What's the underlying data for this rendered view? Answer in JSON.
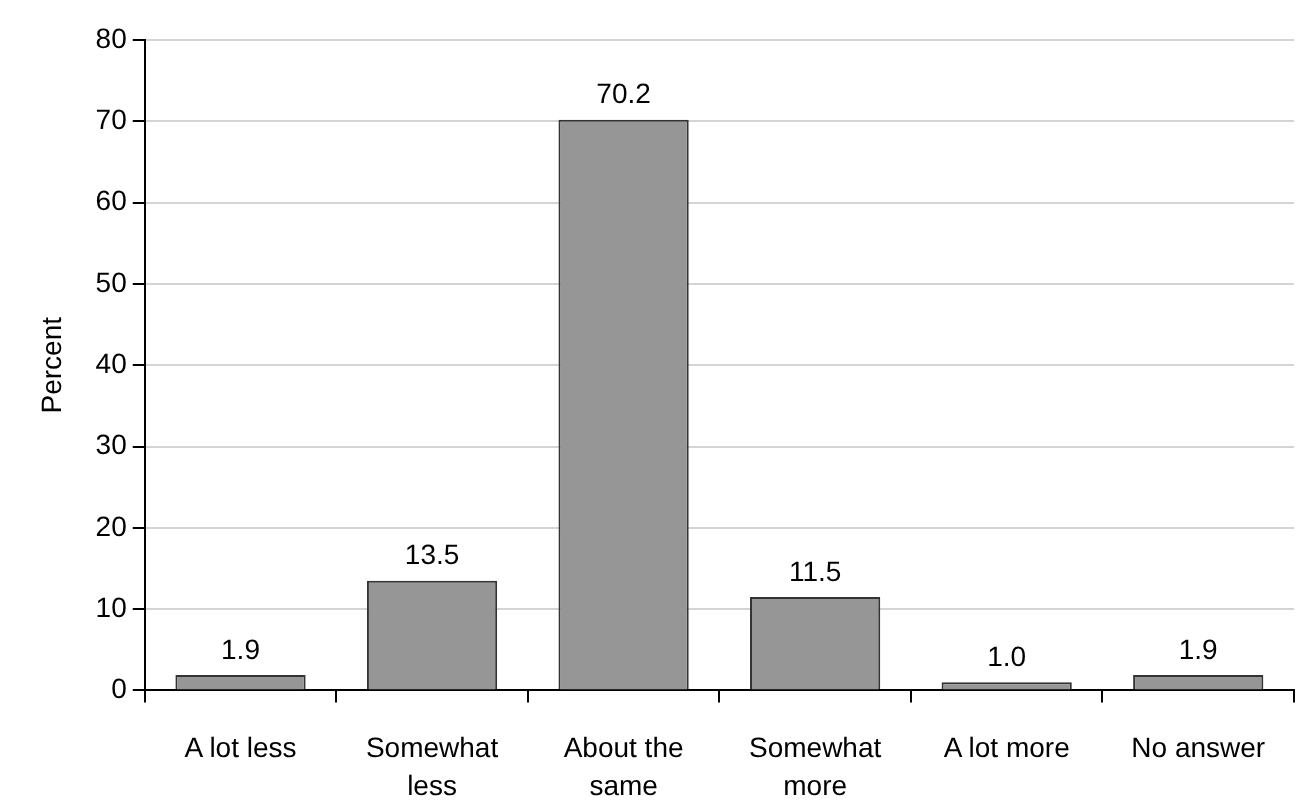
{
  "chart_data": {
    "type": "bar",
    "ylabel": "Percent",
    "categories": [
      "A lot less",
      "Somewhat less",
      "About the same",
      "Somewhat more",
      "A lot more",
      "No answer"
    ],
    "values": [
      1.9,
      13.5,
      70.2,
      11.5,
      1.0,
      1.9
    ],
    "value_labels": [
      "1.9",
      "13.5",
      "70.2",
      "11.5",
      "1.0",
      "1.9"
    ],
    "color": "#969696",
    "ylim": [
      0,
      80
    ],
    "yticks": [
      0,
      10,
      20,
      30,
      40,
      50,
      60,
      70,
      80
    ],
    "grid": "y"
  }
}
